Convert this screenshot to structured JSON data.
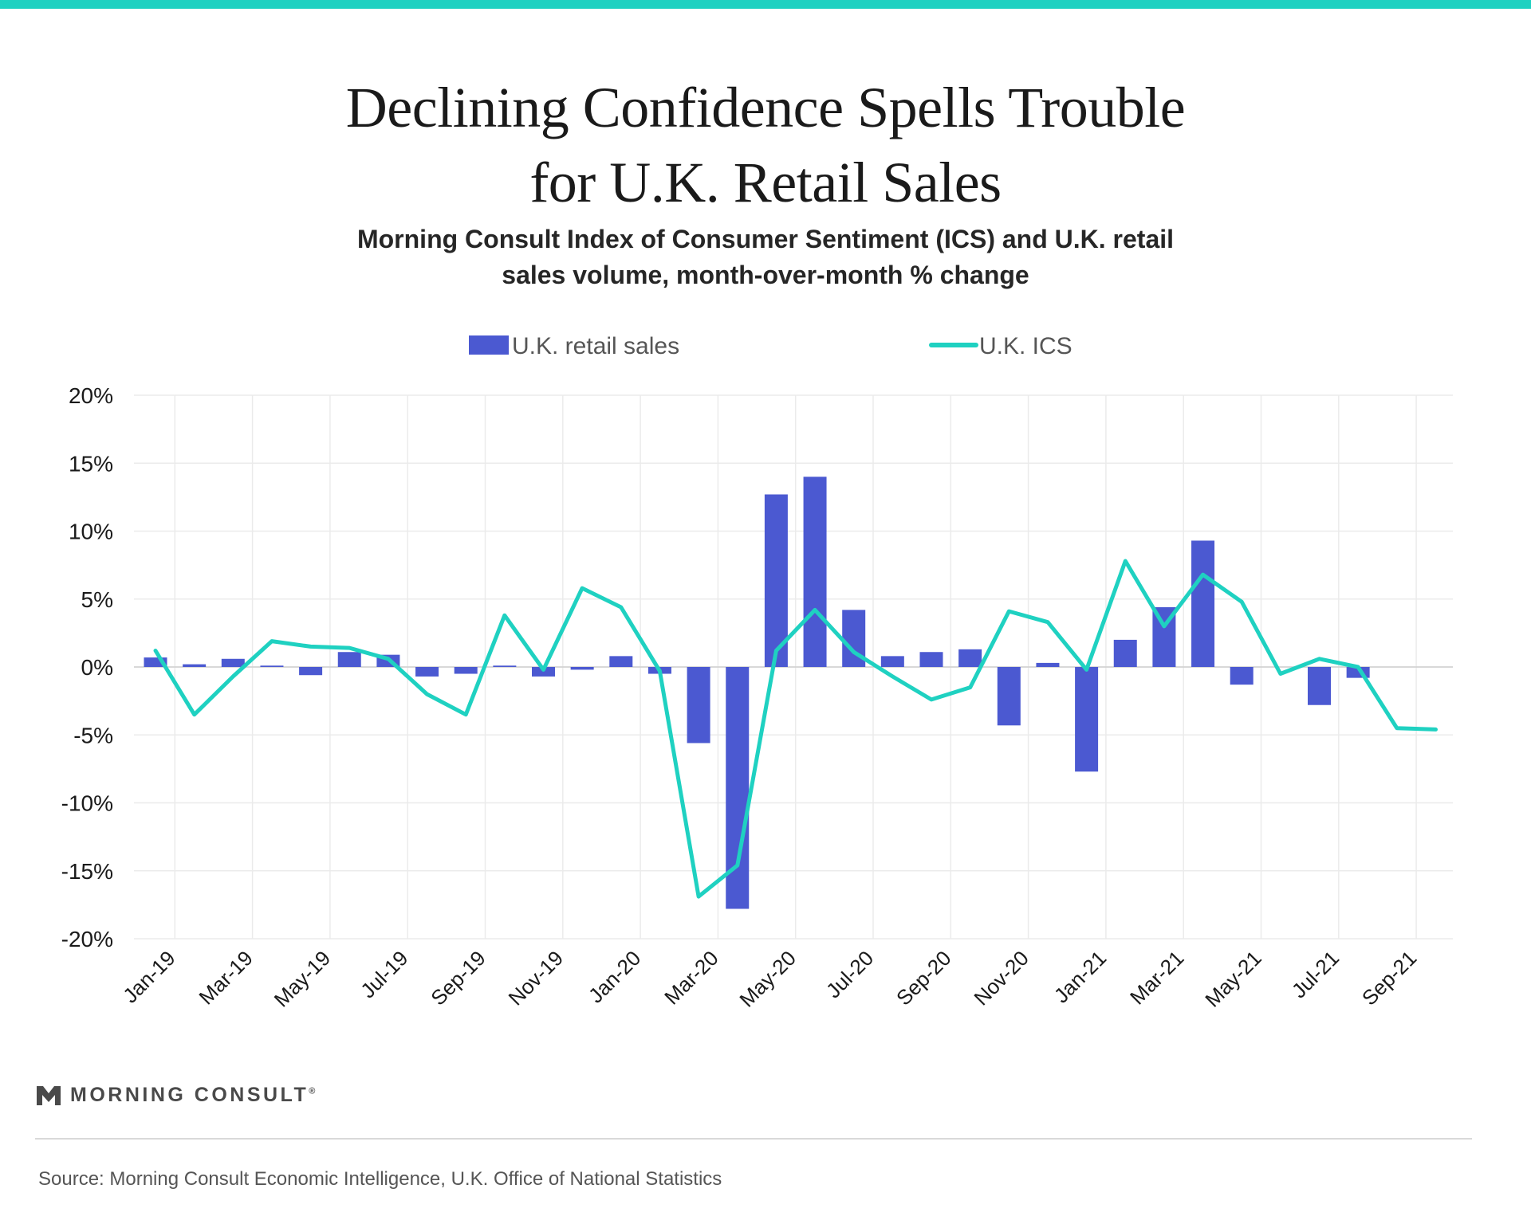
{
  "header": {
    "title_line1": "Declining Confidence Spells Trouble",
    "title_line2": "for U.K. Retail Sales",
    "subtitle_line1": "Morning Consult Index of Consumer Sentiment (ICS) and U.K. retail",
    "subtitle_line2": "sales volume, month-over-month % change"
  },
  "colors": {
    "accent_bar": "#1fd1c1",
    "bar_series": "#4b59d1",
    "line_series": "#1fd1c1",
    "grid": "#ebebeb",
    "text": "#1a1a1a"
  },
  "chart_data": {
    "type": "bar+line",
    "categories": [
      "Jan-19",
      "Feb-19",
      "Mar-19",
      "Apr-19",
      "May-19",
      "Jun-19",
      "Jul-19",
      "Aug-19",
      "Sep-19",
      "Oct-19",
      "Nov-19",
      "Dec-19",
      "Jan-20",
      "Feb-20",
      "Mar-20",
      "Apr-20",
      "May-20",
      "Jun-20",
      "Jul-20",
      "Aug-20",
      "Sep-20",
      "Oct-20",
      "Nov-20",
      "Dec-20",
      "Jan-21",
      "Feb-21",
      "Mar-21",
      "Apr-21",
      "May-21",
      "Jun-21",
      "Jul-21",
      "Aug-21",
      "Sep-21",
      "Oct-21"
    ],
    "tick_labels": [
      "Jan-19",
      "Mar-19",
      "May-19",
      "Jul-19",
      "Sep-19",
      "Nov-19",
      "Jan-20",
      "Mar-20",
      "May-20",
      "Jul-20",
      "Sep-20",
      "Nov-20",
      "Jan-21",
      "Mar-21",
      "May-21",
      "Jul-21",
      "Sep-21"
    ],
    "series": [
      {
        "name": "U.K. retail sales",
        "type": "bar",
        "values": [
          0.7,
          0.2,
          0.6,
          0.1,
          -0.6,
          1.1,
          0.9,
          -0.7,
          -0.5,
          0.1,
          -0.7,
          -0.2,
          0.8,
          -0.5,
          -5.6,
          -17.8,
          12.7,
          14.0,
          4.2,
          0.8,
          1.1,
          1.3,
          -4.3,
          0.3,
          -7.7,
          2.0,
          4.4,
          9.3,
          -1.3,
          null,
          -2.8,
          -0.8,
          null,
          null
        ]
      },
      {
        "name": "U.K. ICS",
        "type": "line",
        "values": [
          1.2,
          -3.5,
          -0.7,
          1.9,
          1.5,
          1.4,
          0.6,
          -2.0,
          -3.5,
          3.8,
          -0.2,
          5.8,
          4.4,
          -0.3,
          -16.9,
          -14.6,
          1.2,
          4.2,
          1.1,
          -0.7,
          -2.4,
          -1.5,
          4.1,
          3.3,
          -0.2,
          7.8,
          3.0,
          6.8,
          4.8,
          -0.5,
          0.6,
          0.0,
          -4.5,
          -4.6
        ]
      }
    ],
    "y_ticks": [
      "20%",
      "15%",
      "10%",
      "5%",
      "0%",
      "-5%",
      "-10%",
      "-15%",
      "-20%"
    ],
    "ylim": [
      -20,
      20
    ],
    "grid": true,
    "legend_position": "top-center"
  },
  "footer": {
    "brand": "MORNING CONSULT",
    "trademark": "®",
    "source": "Source: Morning Consult Economic Intelligence, U.K. Office of National Statistics"
  }
}
